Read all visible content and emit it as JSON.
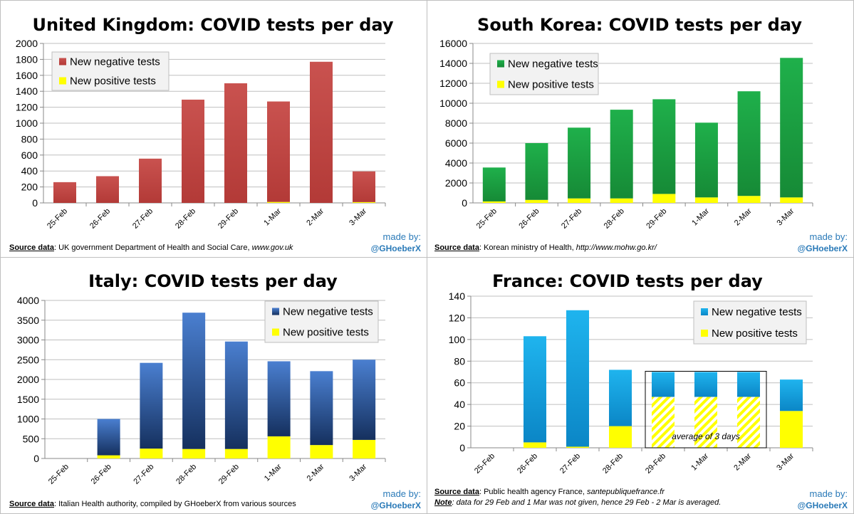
{
  "charts": [
    {
      "id": "uk",
      "title": "United Kingdom: COVID tests per day",
      "source_label": "Source data",
      "source_text": ": UK government Department of Health and Social Care, ",
      "source_italic": "www.gov.uk",
      "note_label": "",
      "note_text": "",
      "made_by": "made by:",
      "handle": "@GHoeberX",
      "colors": {
        "neg_top": "#c9524f",
        "neg_bottom": "#b33a37",
        "pos": "#ffff00"
      },
      "legend": [
        "New negative tests",
        "New positive tests"
      ]
    },
    {
      "id": "kr",
      "title": "South Korea: COVID tests per day",
      "source_label": "Source data",
      "source_text": ": Korean ministry of Health, ",
      "source_italic": "http://www.mohw.go.kr/",
      "note_label": "",
      "note_text": "",
      "made_by": "made by:",
      "handle": "@GHoeberX",
      "colors": {
        "neg_top": "#1fb04b",
        "neg_bottom": "#168a36",
        "pos": "#ffff00"
      },
      "legend": [
        "New negative tests",
        "New positive tests"
      ]
    },
    {
      "id": "it",
      "title": "Italy: COVID tests per day",
      "source_label": "Source data",
      "source_text": ": Italian Health authority, compiled by GHoeberX from various sources",
      "source_italic": "",
      "note_label": "",
      "note_text": "",
      "made_by": "made by:",
      "handle": "@GHoeberX",
      "colors": {
        "neg_top": "#4a7fd0",
        "neg_bottom": "#15305e",
        "pos": "#ffff00"
      },
      "legend": [
        "New negative tests",
        "New positive tests"
      ]
    },
    {
      "id": "fr",
      "title": "France: COVID tests per day",
      "source_label": "Source data",
      "source_text": ": Public health agency France, ",
      "source_italic": "santepubliquefrance.fr",
      "note_label": "Note",
      "note_text": ": data for 29 Feb and 1 Mar was not given, hence 29 Feb - 2 Mar is averaged.",
      "made_by": "made by:",
      "handle": "@GHoeberX",
      "annotation": "average of 3 days",
      "colors": {
        "neg_top": "#1fb4ee",
        "neg_bottom": "#0b86c6",
        "pos": "#ffff00"
      },
      "legend": [
        "New negative tests",
        "New positive tests"
      ]
    }
  ],
  "chart_data": [
    {
      "type": "bar",
      "stacked": true,
      "title": "United Kingdom: COVID tests per day",
      "categories": [
        "25-Feb",
        "26-Feb",
        "27-Feb",
        "28-Feb",
        "29-Feb",
        "1-Mar",
        "2-Mar",
        "3-Mar"
      ],
      "series": [
        {
          "name": "New negative tests",
          "values": [
            260,
            335,
            555,
            1295,
            1500,
            1260,
            1770,
            385
          ]
        },
        {
          "name": "New positive tests",
          "values": [
            0,
            0,
            0,
            0,
            0,
            12,
            0,
            10
          ]
        }
      ],
      "yticks": [
        0,
        200,
        400,
        600,
        800,
        1000,
        1200,
        1400,
        1600,
        1800,
        2000
      ],
      "ylim": [
        0,
        2000
      ],
      "grid": true,
      "legend": "top-left"
    },
    {
      "type": "bar",
      "stacked": true,
      "title": "South Korea: COVID tests per day",
      "categories": [
        "25-Feb",
        "26-Feb",
        "27-Feb",
        "28-Feb",
        "29-Feb",
        "1-Mar",
        "2-Mar",
        "3-Mar"
      ],
      "series": [
        {
          "name": "New negative tests",
          "values": [
            3400,
            5700,
            7100,
            8900,
            9500,
            7500,
            10500,
            14000
          ]
        },
        {
          "name": "New positive tests",
          "values": [
            150,
            300,
            450,
            450,
            900,
            550,
            700,
            550
          ]
        }
      ],
      "yticks": [
        0,
        2000,
        4000,
        6000,
        8000,
        10000,
        12000,
        14000,
        16000
      ],
      "ylim": [
        0,
        16000
      ],
      "grid": true,
      "legend": "top-left"
    },
    {
      "type": "bar",
      "stacked": true,
      "title": "Italy: COVID tests per day",
      "categories": [
        "25-Feb",
        "26-Feb",
        "27-Feb",
        "28-Feb",
        "29-Feb",
        "1-Mar",
        "2-Mar",
        "3-Mar"
      ],
      "series": [
        {
          "name": "New negative tests",
          "values": [
            0,
            920,
            2170,
            3450,
            2720,
            1900,
            1870,
            2030
          ]
        },
        {
          "name": "New positive tests",
          "values": [
            0,
            80,
            250,
            240,
            240,
            560,
            340,
            470
          ]
        }
      ],
      "yticks": [
        0,
        500,
        1000,
        1500,
        2000,
        2500,
        3000,
        3500,
        4000
      ],
      "ylim": [
        0,
        4000
      ],
      "grid": true,
      "legend": "top-right"
    },
    {
      "type": "bar",
      "stacked": true,
      "title": "France: COVID tests per day",
      "categories": [
        "25-Feb",
        "26-Feb",
        "27-Feb",
        "28-Feb",
        "29-Feb",
        "1-Mar",
        "2-Mar",
        "3-Mar"
      ],
      "series": [
        {
          "name": "New negative tests",
          "values": [
            0,
            98,
            126,
            52,
            23,
            23,
            23,
            29
          ]
        },
        {
          "name": "New positive tests",
          "values": [
            0,
            5,
            1,
            20,
            47,
            47,
            47,
            34
          ]
        }
      ],
      "averaged_categories": [
        "29-Feb",
        "1-Mar",
        "2-Mar"
      ],
      "yticks": [
        0,
        20,
        40,
        60,
        80,
        100,
        120,
        140
      ],
      "ylim": [
        0,
        140
      ],
      "grid": true,
      "legend": "top-right"
    }
  ]
}
